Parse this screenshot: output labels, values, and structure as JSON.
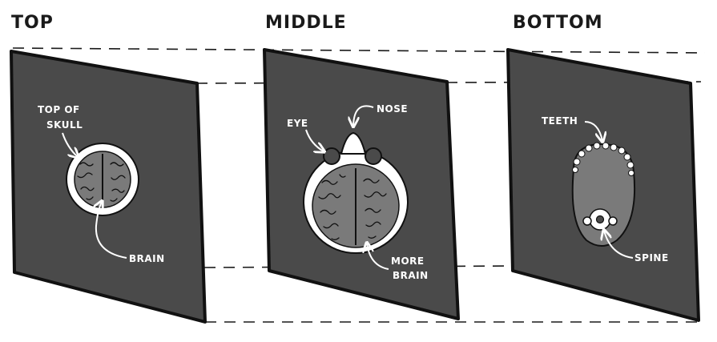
{
  "headings": {
    "top": "TOP",
    "middle": "MIDDLE",
    "bottom": "BOTTOM"
  },
  "labels": {
    "top_of_skull_line1": "TOP OF",
    "top_of_skull_line2": "SKULL",
    "brain": "BRAIN",
    "eye": "EYE",
    "nose": "NOSE",
    "more_brain_line1": "MORE",
    "more_brain_line2": "BRAIN",
    "teeth": "TEETH",
    "spine": "SPINE"
  },
  "colors": {
    "panel": "#4a4a4a",
    "outline": "#111111",
    "brain": "#7a7a7a",
    "skull": "#ffffff",
    "label": "#ffffff"
  }
}
